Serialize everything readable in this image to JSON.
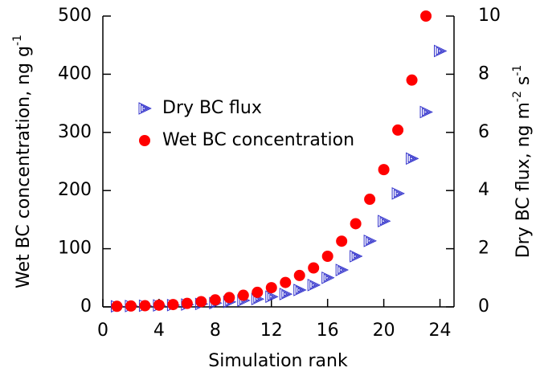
{
  "chart_data": {
    "type": "scatter",
    "xlabel": "Simulation rank",
    "ylabel": [
      "Wet BC concentration, ng g",
      "-1"
    ],
    "y2label": [
      "Dry BC flux, ng m",
      "-2",
      " s",
      "-1"
    ],
    "xlim": [
      0,
      25
    ],
    "xticks": [
      0,
      4,
      8,
      12,
      16,
      20,
      24
    ],
    "ylim": [
      0,
      500
    ],
    "yticks": [
      0,
      100,
      200,
      300,
      400,
      500
    ],
    "y2lim": [
      0,
      10
    ],
    "y2ticks": [
      0,
      2,
      4,
      6,
      8,
      10
    ],
    "legend": "upper left",
    "series": [
      {
        "name": "Dry BC flux",
        "color": "#3333cc",
        "marker": "triangle-right",
        "axis": "y2",
        "x": [
          1,
          2,
          3,
          4,
          5,
          6,
          7,
          8,
          9,
          10,
          11,
          12,
          13,
          14,
          15,
          16,
          17,
          18,
          19,
          20,
          21,
          22,
          23,
          24
        ],
        "values": [
          0.02,
          0.03,
          0.04,
          0.05,
          0.06,
          0.08,
          0.1,
          0.13,
          0.17,
          0.22,
          0.27,
          0.35,
          0.44,
          0.58,
          0.75,
          1.0,
          1.27,
          1.74,
          2.27,
          2.95,
          3.9,
          5.1,
          6.7,
          8.8
        ]
      },
      {
        "name": "Wet BC concentration",
        "color": "#ff0000",
        "marker": "circle",
        "x": [
          1,
          2,
          3,
          4,
          5,
          6,
          7,
          8,
          9,
          10,
          11,
          12,
          13,
          14,
          15,
          16,
          17,
          18,
          19,
          20,
          21,
          22,
          23
        ],
        "values": [
          1,
          1.5,
          2,
          3,
          4,
          6,
          9,
          12,
          16,
          20,
          25,
          33,
          42,
          54,
          67,
          87,
          113,
          143,
          185,
          236,
          304,
          390,
          500
        ]
      }
    ]
  }
}
